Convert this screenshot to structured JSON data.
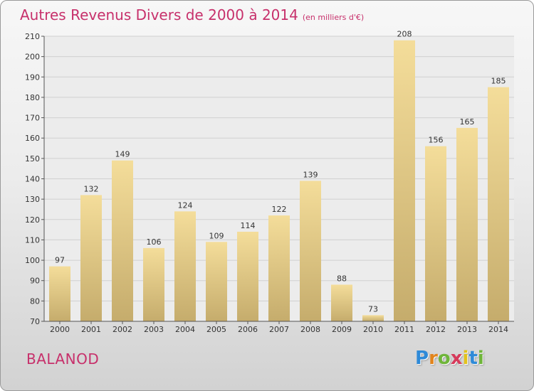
{
  "title": "Autres Revenus Divers de 2000 à 2014",
  "subtitle": "(en milliers d'€)",
  "commune": "BALANOD",
  "logo": {
    "letters": [
      "P",
      "r",
      "o",
      "x",
      "i",
      "t",
      "i"
    ],
    "colors": [
      "#2e8ad8",
      "#e2841c",
      "#6fb53a",
      "#d63a5b",
      "#e2c21c",
      "#2e8ad8",
      "#6fb53a"
    ]
  },
  "colors": {
    "title": "#c7306b",
    "bar_light": "#f4dd9a",
    "bar_dark": "#c5ac6c",
    "grid": "#d0d0d0"
  },
  "chart_data": {
    "type": "bar",
    "title": "Autres Revenus Divers de 2000 à 2014",
    "subtitle": "(en milliers d'€)",
    "xlabel": "",
    "ylabel": "",
    "ylim": [
      70,
      210
    ],
    "yticks": [
      70,
      80,
      90,
      100,
      110,
      120,
      130,
      140,
      150,
      160,
      170,
      180,
      190,
      200,
      210
    ],
    "categories": [
      "2000",
      "2001",
      "2002",
      "2003",
      "2004",
      "2005",
      "2006",
      "2007",
      "2008",
      "2009",
      "2010",
      "2011",
      "2012",
      "2013",
      "2014"
    ],
    "values": [
      97,
      132,
      149,
      106,
      124,
      109,
      114,
      122,
      139,
      88,
      73,
      208,
      156,
      165,
      185
    ],
    "grid": true,
    "legend": "none"
  }
}
